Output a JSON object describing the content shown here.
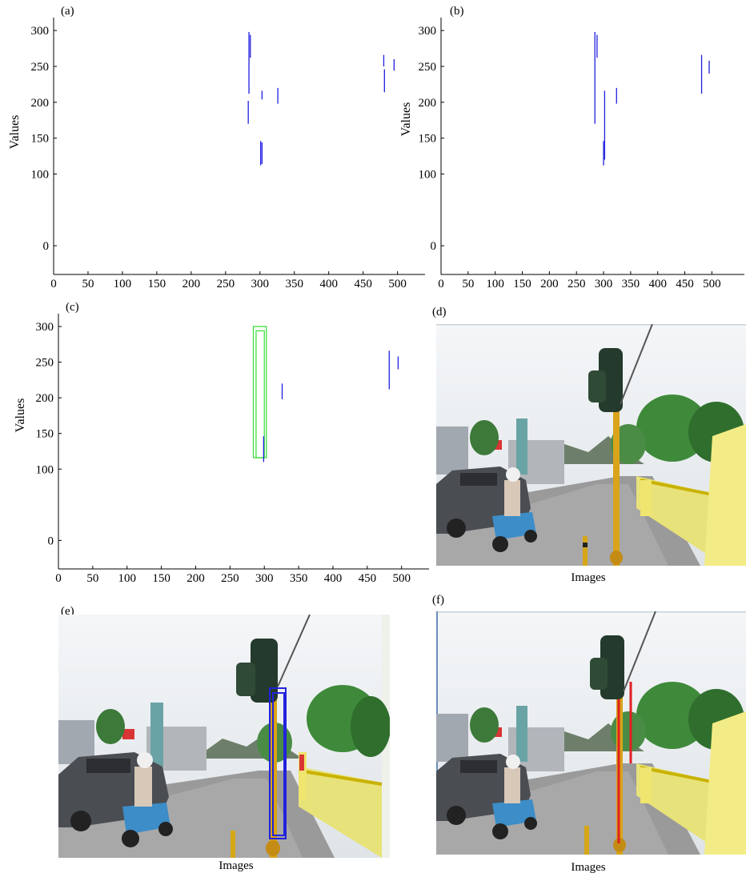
{
  "chart_data": [
    {
      "id": "a",
      "panel_label": "(a)",
      "type": "line",
      "ylabel": "Values",
      "xlabel": "",
      "x_ticks": [
        0,
        50,
        100,
        150,
        200,
        250,
        300,
        350,
        400,
        450,
        500
      ],
      "y_ticks": [
        0,
        100,
        150,
        200,
        250,
        300
      ],
      "xlim": [
        0,
        540
      ],
      "ylim": [
        -40,
        318
      ],
      "series": [
        {
          "color": "#2020e0",
          "segments": [
            {
              "x": 284,
              "y0": 212,
              "y1": 298
            },
            {
              "x": 286,
              "y0": 262,
              "y1": 294
            },
            {
              "x": 283,
              "y0": 170,
              "y1": 202
            },
            {
              "x": 301,
              "y0": 112,
              "y1": 146
            },
            {
              "x": 303,
              "y0": 114,
              "y1": 144
            },
            {
              "x": 303,
              "y0": 204,
              "y1": 216
            },
            {
              "x": 326,
              "y0": 198,
              "y1": 220
            },
            {
              "x": 481,
              "y0": 214,
              "y1": 246
            },
            {
              "x": 480,
              "y0": 250,
              "y1": 266
            },
            {
              "x": 495,
              "y0": 244,
              "y1": 260
            }
          ]
        }
      ]
    },
    {
      "id": "b",
      "panel_label": "(b)",
      "type": "line",
      "ylabel": "Values",
      "xlabel": "",
      "x_ticks": [
        0,
        50,
        100,
        150,
        200,
        250,
        300,
        350,
        400,
        450,
        500
      ],
      "y_ticks": [
        0,
        100,
        150,
        200,
        250,
        300
      ],
      "xlim": [
        0,
        560
      ],
      "ylim": [
        -40,
        318
      ],
      "series": [
        {
          "color": "#2020e0",
          "segments": [
            {
              "x": 284,
              "y0": 170,
              "y1": 298
            },
            {
              "x": 288,
              "y0": 262,
              "y1": 294
            },
            {
              "x": 300,
              "y0": 112,
              "y1": 146
            },
            {
              "x": 302,
              "y0": 120,
              "y1": 216
            },
            {
              "x": 324,
              "y0": 198,
              "y1": 220
            },
            {
              "x": 481,
              "y0": 212,
              "y1": 266
            },
            {
              "x": 495,
              "y0": 240,
              "y1": 258
            }
          ]
        }
      ]
    },
    {
      "id": "c",
      "panel_label": "(c)",
      "type": "line",
      "ylabel": "Values",
      "xlabel": "",
      "x_ticks": [
        0,
        50,
        100,
        150,
        200,
        250,
        300,
        350,
        400,
        450,
        500
      ],
      "y_ticks": [
        0,
        100,
        150,
        200,
        250,
        300
      ],
      "xlim": [
        0,
        540
      ],
      "ylim": [
        -40,
        318
      ],
      "series": [
        {
          "color": "#2020e0",
          "segments": [
            {
              "x": 299,
              "y0": 110,
              "y1": 146
            },
            {
              "x": 326,
              "y0": 198,
              "y1": 220
            },
            {
              "x": 482,
              "y0": 212,
              "y1": 266
            },
            {
              "x": 495,
              "y0": 240,
              "y1": 258
            }
          ]
        }
      ],
      "boxes": [
        {
          "color": "#33dd33",
          "x0": 284,
          "x1": 303,
          "y0": 116,
          "y1": 300
        },
        {
          "color": "#33dd33",
          "x0": 288,
          "x1": 300,
          "y0": 116,
          "y1": 294
        }
      ]
    }
  ],
  "images": {
    "d": {
      "panel_label": "(d)",
      "caption": "Images"
    },
    "e": {
      "panel_label": "(e)",
      "caption": "Images"
    },
    "f": {
      "panel_label": "(f)",
      "caption": "Images"
    }
  }
}
